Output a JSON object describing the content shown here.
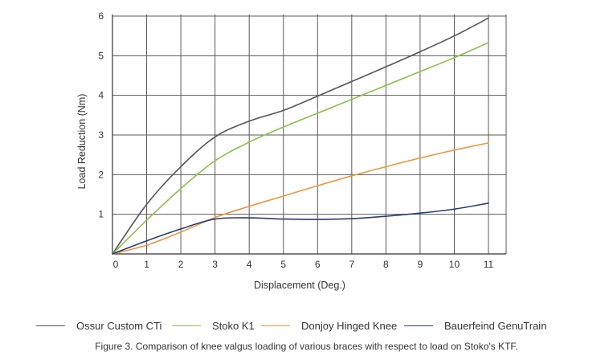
{
  "chart_data": {
    "type": "line",
    "title": "",
    "xlabel": "Displacement (Deg.)",
    "ylabel": "Load Reduction (Nm)",
    "xlim": [
      0,
      11.5
    ],
    "ylim": [
      0,
      6
    ],
    "xticks": [
      "0",
      "1",
      "2",
      "3",
      "4",
      "5",
      "6",
      "7",
      "8",
      "9",
      "10",
      "11"
    ],
    "yticks": [
      "1",
      "2",
      "3",
      "4",
      "5",
      "6"
    ],
    "grid": true,
    "legend_position": "bottom",
    "series": [
      {
        "name": "Ossur Custom CTi",
        "color": "#555559",
        "x": [
          0,
          1,
          2,
          3,
          4,
          5,
          6,
          7,
          8,
          9,
          10,
          11
        ],
        "y": [
          0,
          1.25,
          2.2,
          2.95,
          3.35,
          3.62,
          3.98,
          4.35,
          4.72,
          5.1,
          5.5,
          5.95
        ]
      },
      {
        "name": "Stoko K1",
        "color": "#8cc04a",
        "x": [
          0,
          1,
          2,
          3,
          4,
          5,
          6,
          7,
          8,
          9,
          10,
          11
        ],
        "y": [
          0,
          0.85,
          1.65,
          2.35,
          2.82,
          3.2,
          3.55,
          3.9,
          4.25,
          4.6,
          4.95,
          5.33
        ]
      },
      {
        "name": "Donjoy Hinged Knee",
        "color": "#f0953a",
        "x": [
          0,
          1,
          2,
          3,
          4,
          5,
          6,
          7,
          8,
          9,
          10,
          11
        ],
        "y": [
          0,
          0.22,
          0.55,
          0.92,
          1.2,
          1.46,
          1.72,
          1.97,
          2.2,
          2.42,
          2.62,
          2.8
        ]
      },
      {
        "name": "Bauerfeind GenuTrain",
        "color": "#2b3a7a",
        "x": [
          0,
          1,
          2,
          3,
          4,
          5,
          6,
          7,
          8,
          9,
          10,
          11
        ],
        "y": [
          0,
          0.33,
          0.63,
          0.88,
          0.91,
          0.88,
          0.87,
          0.89,
          0.95,
          1.03,
          1.13,
          1.28
        ]
      }
    ]
  },
  "caption": "Figure 3. Comparison of knee valgus loading of various braces with respect to load on Stoko's KTF."
}
